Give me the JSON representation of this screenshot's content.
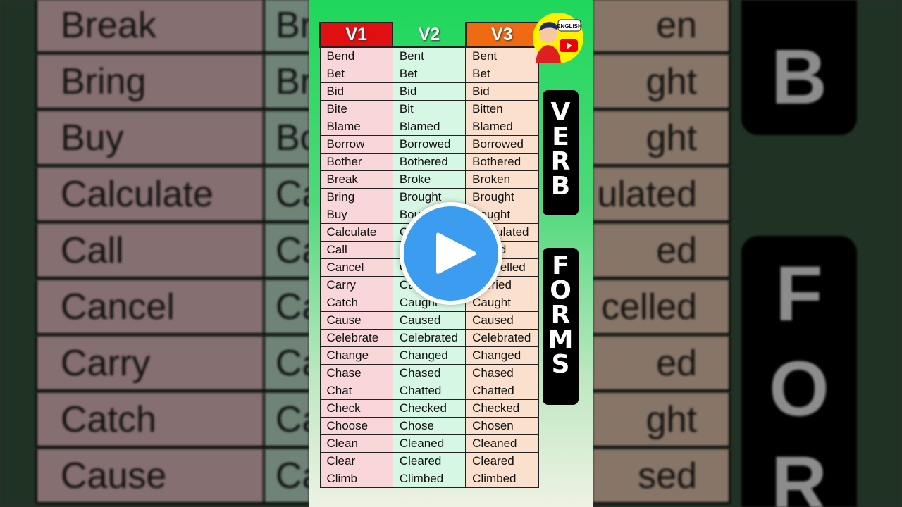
{
  "table": {
    "headers": [
      "V1",
      "V2",
      "V3"
    ],
    "colors": {
      "v1": "#e01010",
      "v2": "#1fd75b",
      "v3": "#ef6a10"
    },
    "rows": [
      [
        "Bend",
        "Bent",
        "Bent"
      ],
      [
        "Bet",
        "Bet",
        "Bet"
      ],
      [
        "Bid",
        "Bid",
        "Bid"
      ],
      [
        "Bite",
        "Bit",
        "Bitten"
      ],
      [
        "Blame",
        "Blamed",
        "Blamed"
      ],
      [
        "Borrow",
        "Borrowed",
        "Borrowed"
      ],
      [
        "Bother",
        "Bothered",
        "Bothered"
      ],
      [
        "Break",
        "Broke",
        "Broken"
      ],
      [
        "Bring",
        "Brought",
        "Brought"
      ],
      [
        "Buy",
        "Bought",
        "Bought"
      ],
      [
        "Calculate",
        "Calculated",
        "Calculated"
      ],
      [
        "Call",
        "Called",
        "Called"
      ],
      [
        "Cancel",
        "Cancelled",
        "Cancelled"
      ],
      [
        "Carry",
        "Carried",
        "Carried"
      ],
      [
        "Catch",
        "Caught",
        "Caught"
      ],
      [
        "Cause",
        "Caused",
        "Caused"
      ],
      [
        "Celebrate",
        "Celebrated",
        "Celebrated"
      ],
      [
        "Change",
        "Changed",
        "Changed"
      ],
      [
        "Chase",
        "Chased",
        "Chased"
      ],
      [
        "Chat",
        "Chatted",
        "Chatted"
      ],
      [
        "Check",
        "Checked",
        "Checked"
      ],
      [
        "Choose",
        "Chose",
        "Chosen"
      ],
      [
        "Clean",
        "Cleaned",
        "Cleaned"
      ],
      [
        "Clear",
        "Cleared",
        "Cleared"
      ],
      [
        "Climb",
        "Climbed",
        "Climbed"
      ]
    ]
  },
  "side_label": {
    "word1": "VERB",
    "word2": "FORMS"
  },
  "logo": {
    "text": "ENGLISH"
  },
  "background": {
    "left_col1": [
      "Break",
      "Bring",
      "Buy",
      "Calculate",
      "Call",
      "Cancel",
      "Carry",
      "Catch",
      "Cause"
    ],
    "left_col2": [
      "Br",
      "Br",
      "Bo",
      "Ca",
      "Ca",
      "Ca",
      "Ca",
      "Ca",
      "Ca"
    ],
    "right_col3": [
      "en",
      "ght",
      "ght",
      "ulated",
      "ed",
      "celled",
      "ed",
      "ght",
      "sed"
    ],
    "right_letters": [
      "B",
      "F",
      "O",
      "R"
    ]
  },
  "play_button": {
    "icon": "play-icon",
    "color": "#3b9cf0"
  }
}
